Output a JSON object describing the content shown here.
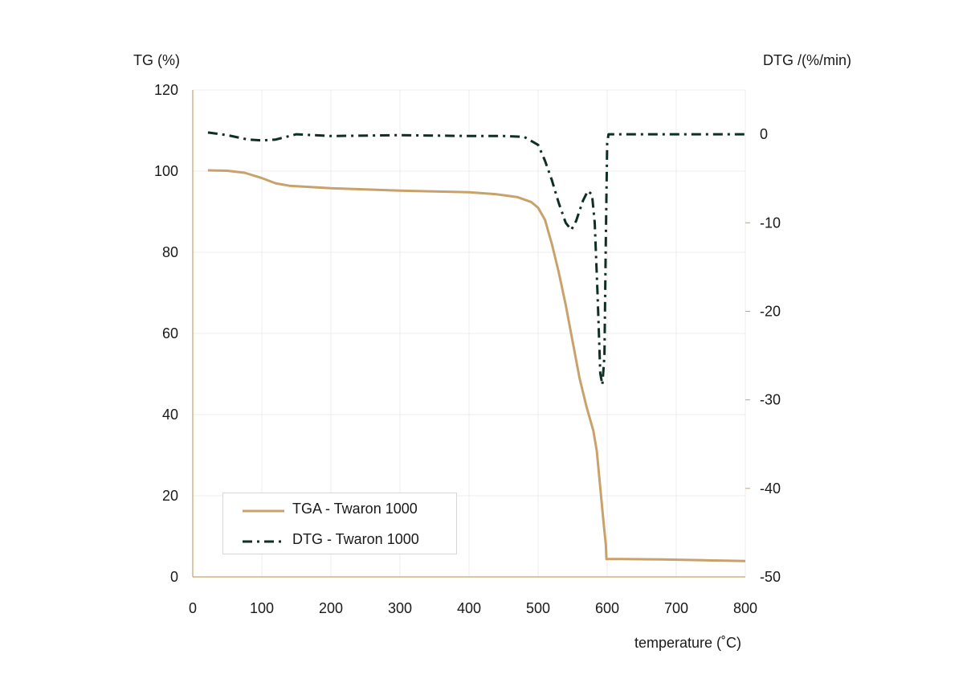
{
  "chart_data": {
    "type": "line",
    "xlabel": "temperature (˚C)",
    "ylabel_left": "TG (%)",
    "ylabel_right": "DTG /(%/min)",
    "xlim": [
      0,
      800
    ],
    "ylim_left": [
      0,
      120
    ],
    "ylim_right": [
      -50,
      5
    ],
    "x_ticks": [
      "0",
      "100",
      "200",
      "300",
      "400",
      "500",
      "600",
      "700",
      "800"
    ],
    "y_left_ticks": [
      "0",
      "20",
      "40",
      "60",
      "80",
      "100",
      "120"
    ],
    "y_right_ticks": [
      "0",
      "-10",
      "-20",
      "-30",
      "-40",
      "-50"
    ],
    "grid": true,
    "legend_position": "bottom-left",
    "series": [
      {
        "name": "TGA - Twaron 1000",
        "axis": "left",
        "color": "#c9a26b",
        "style": "solid",
        "points": [
          [
            22,
            100.2
          ],
          [
            50,
            100.1
          ],
          [
            75,
            99.6
          ],
          [
            100,
            98.3
          ],
          [
            120,
            97
          ],
          [
            140,
            96.4
          ],
          [
            170,
            96.1
          ],
          [
            200,
            95.8
          ],
          [
            250,
            95.5
          ],
          [
            300,
            95.2
          ],
          [
            350,
            95
          ],
          [
            400,
            94.8
          ],
          [
            440,
            94.3
          ],
          [
            470,
            93.6
          ],
          [
            490,
            92.4
          ],
          [
            500,
            91
          ],
          [
            510,
            88
          ],
          [
            520,
            82
          ],
          [
            530,
            75
          ],
          [
            540,
            67
          ],
          [
            550,
            58
          ],
          [
            560,
            49
          ],
          [
            570,
            42
          ],
          [
            580,
            36
          ],
          [
            585,
            31
          ],
          [
            590,
            22
          ],
          [
            595,
            13
          ],
          [
            598,
            8
          ],
          [
            599,
            4.4
          ],
          [
            620,
            4.4
          ],
          [
            680,
            4.3
          ],
          [
            740,
            4.1
          ],
          [
            800,
            3.9
          ]
        ]
      },
      {
        "name": "DTG - Twaron 1000",
        "axis": "right",
        "color": "#0f2e24",
        "style": "dash-dot",
        "points": [
          [
            22,
            0.2
          ],
          [
            50,
            -0.1
          ],
          [
            80,
            -0.6
          ],
          [
            100,
            -0.7
          ],
          [
            120,
            -0.6
          ],
          [
            150,
            0
          ],
          [
            200,
            -0.2
          ],
          [
            300,
            -0.1
          ],
          [
            400,
            -0.2
          ],
          [
            450,
            -0.2
          ],
          [
            480,
            -0.3
          ],
          [
            500,
            -1.2
          ],
          [
            510,
            -3
          ],
          [
            520,
            -5.2
          ],
          [
            530,
            -7.8
          ],
          [
            540,
            -10
          ],
          [
            548,
            -10.8
          ],
          [
            555,
            -9.8
          ],
          [
            565,
            -7.5
          ],
          [
            572,
            -6.4
          ],
          [
            578,
            -6.8
          ],
          [
            582,
            -10
          ],
          [
            586,
            -18
          ],
          [
            590,
            -27
          ],
          [
            593,
            -28.3
          ],
          [
            596,
            -25
          ],
          [
            598,
            -12
          ],
          [
            600,
            -1
          ],
          [
            602,
            0
          ],
          [
            650,
            0
          ],
          [
            700,
            0
          ],
          [
            750,
            0
          ],
          [
            800,
            0
          ]
        ]
      }
    ]
  }
}
